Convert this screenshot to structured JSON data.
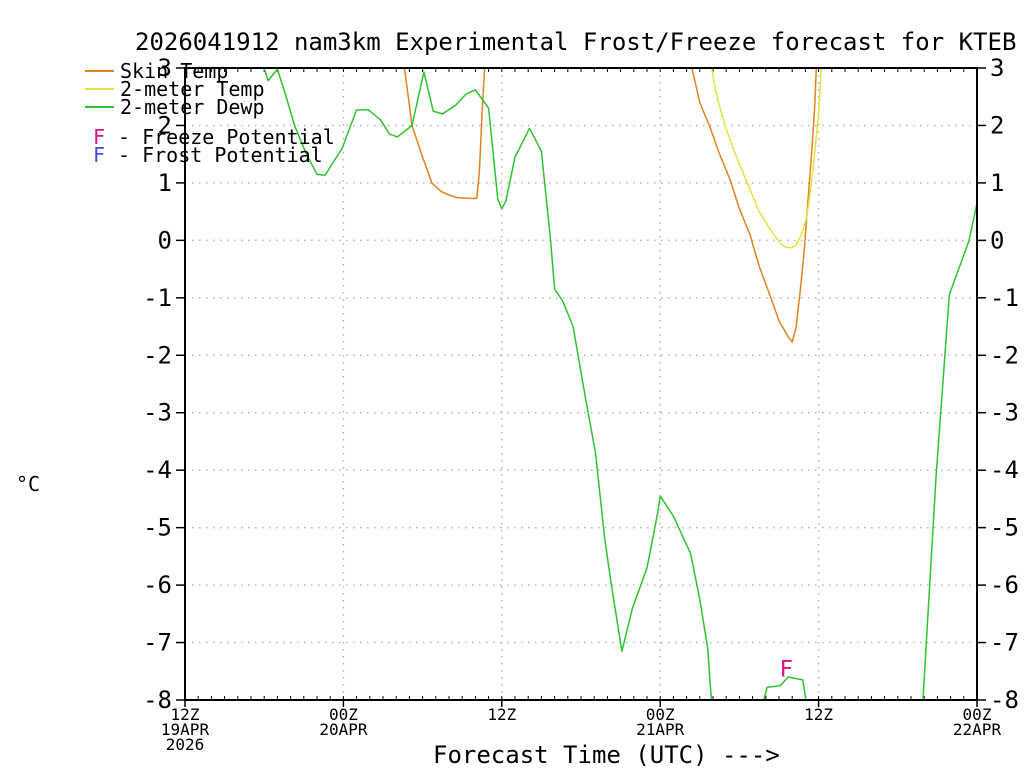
{
  "title": "2026041912 nam3km Experimental Frost/Freeze forecast for KTEB",
  "ylabel": "°C",
  "xlabel": "Forecast Time (UTC) --->",
  "legend": {
    "series": [
      {
        "label": "Skin Temp",
        "color": "#e08421"
      },
      {
        "label": "2-meter Temp",
        "color": "#e2e242"
      },
      {
        "label": "2-meter Dewp",
        "color": "#2ec42e"
      }
    ],
    "flags": [
      {
        "symbol": "F",
        "label": "- Freeze Potential",
        "color": "#d80f8d"
      },
      {
        "symbol": "F",
        "label": "- Frost Potential",
        "color": "#4646ff"
      }
    ]
  },
  "chart_data": {
    "type": "line",
    "title": "2026041912 nam3km Experimental Frost/Freeze forecast for KTEB",
    "x_axis": {
      "label": "Forecast Time (UTC) --->",
      "units": "hours after 12Z 19APR 2026",
      "range_hours": [
        0,
        60
      ],
      "ticks": [
        {
          "hour": 0,
          "lines": [
            "12Z",
            "19APR",
            "2026"
          ]
        },
        {
          "hour": 12,
          "lines": [
            "00Z",
            "20APR"
          ]
        },
        {
          "hour": 24,
          "lines": [
            "12Z"
          ]
        },
        {
          "hour": 36,
          "lines": [
            "00Z",
            "21APR"
          ]
        },
        {
          "hour": 48,
          "lines": [
            "12Z"
          ]
        },
        {
          "hour": 60,
          "lines": [
            "00Z",
            "22APR"
          ]
        }
      ],
      "minor_tick_every_hours": 1
    },
    "y_axis": {
      "label": "°C",
      "range": [
        -8,
        3
      ],
      "ticks": [
        3,
        2,
        1,
        0,
        -1,
        -2,
        -3,
        -4,
        -5,
        -6,
        -7,
        -8
      ]
    },
    "grid": {
      "style": "dotted",
      "color": "#b4b4b4",
      "every_c": 1,
      "every_hours": 12
    },
    "axis_color": "#000000",
    "series": [
      {
        "name": "Skin Temp",
        "color": "#e08421",
        "unit": "°C",
        "note": "values above 3°C are off-scale (clipped at top)",
        "segments": [
          [
            [
              16.4,
              3.4
            ],
            [
              17.2,
              2.0
            ],
            [
              18.0,
              1.45
            ],
            [
              18.7,
              1.0
            ],
            [
              19.4,
              0.85
            ],
            [
              20.1,
              0.78
            ],
            [
              20.7,
              0.74
            ],
            [
              21.4,
              0.73
            ],
            [
              22.1,
              0.73
            ],
            [
              22.3,
              1.2
            ],
            [
              22.5,
              2.2
            ],
            [
              22.8,
              3.4
            ]
          ],
          [
            [
              38.0,
              3.4
            ],
            [
              39.0,
              2.4
            ],
            [
              39.8,
              1.95
            ],
            [
              40.5,
              1.5
            ],
            [
              41.3,
              1.05
            ],
            [
              42.0,
              0.55
            ],
            [
              42.8,
              0.1
            ],
            [
              43.5,
              -0.45
            ],
            [
              44.3,
              -0.95
            ],
            [
              45.0,
              -1.4
            ],
            [
              45.7,
              -1.68
            ],
            [
              46.0,
              -1.77
            ],
            [
              46.3,
              -1.5
            ],
            [
              46.6,
              -0.9
            ],
            [
              46.9,
              -0.2
            ],
            [
              47.2,
              0.7
            ],
            [
              47.5,
              1.6
            ],
            [
              47.7,
              2.3
            ],
            [
              47.9,
              3.4
            ]
          ]
        ]
      },
      {
        "name": "2-meter Temp",
        "color": "#e2e242",
        "unit": "°C",
        "note": "only dips on-scale overnight 21APR; min ≈ -0.1°C near 10Z",
        "segments": [
          [
            [
              39.6,
              3.4
            ],
            [
              40.2,
              2.6
            ],
            [
              40.9,
              2.0
            ],
            [
              41.7,
              1.5
            ],
            [
              42.6,
              1.0
            ],
            [
              43.5,
              0.5
            ],
            [
              44.3,
              0.2
            ],
            [
              45.1,
              -0.05
            ],
            [
              45.5,
              -0.12
            ],
            [
              45.9,
              -0.13
            ],
            [
              46.3,
              -0.08
            ],
            [
              46.7,
              0.1
            ],
            [
              47.1,
              0.4
            ],
            [
              47.4,
              0.9
            ],
            [
              47.7,
              1.5
            ],
            [
              48.0,
              2.2
            ],
            [
              48.3,
              3.4
            ]
          ]
        ]
      },
      {
        "name": "2-meter Dewp",
        "color": "#2ec42e",
        "unit": "°C",
        "note": "drops below -8°C (off-scale) twice; min shown ≈ -7.2°C then below chart",
        "segments": [
          [
            [
              5.4,
              3.4
            ],
            [
              6.3,
              2.78
            ],
            [
              7.0,
              2.98
            ],
            [
              7.6,
              2.55
            ],
            [
              8.3,
              2.0
            ],
            [
              9.2,
              1.5
            ],
            [
              10.0,
              1.15
            ],
            [
              10.6,
              1.13
            ],
            [
              11.9,
              1.6
            ],
            [
              13.0,
              2.27
            ],
            [
              13.9,
              2.27
            ],
            [
              14.8,
              2.1
            ],
            [
              15.5,
              1.85
            ],
            [
              16.1,
              1.8
            ],
            [
              17.2,
              2.0
            ],
            [
              18.1,
              2.93
            ],
            [
              18.8,
              2.25
            ],
            [
              19.5,
              2.2
            ],
            [
              20.5,
              2.35
            ],
            [
              21.3,
              2.55
            ],
            [
              22.0,
              2.62
            ],
            [
              23.0,
              2.3
            ],
            [
              23.7,
              0.72
            ],
            [
              24.0,
              0.55
            ],
            [
              24.3,
              0.68
            ],
            [
              25.0,
              1.45
            ],
            [
              26.1,
              1.95
            ],
            [
              27.0,
              1.55
            ],
            [
              27.7,
              0.0
            ],
            [
              28.0,
              -0.85
            ],
            [
              28.6,
              -1.05
            ],
            [
              29.4,
              -1.5
            ],
            [
              30.3,
              -2.7
            ],
            [
              31.1,
              -3.7
            ],
            [
              31.8,
              -5.2
            ],
            [
              32.3,
              -6.0
            ],
            [
              33.1,
              -7.15
            ],
            [
              33.9,
              -6.4
            ],
            [
              35.0,
              -5.7
            ],
            [
              35.8,
              -4.75
            ],
            [
              36.0,
              -4.45
            ],
            [
              37.0,
              -4.8
            ],
            [
              37.5,
              -5.05
            ],
            [
              38.3,
              -5.45
            ],
            [
              39.0,
              -6.25
            ],
            [
              39.6,
              -7.1
            ],
            [
              40.0,
              -8.4
            ]
          ],
          [
            [
              43.4,
              -8.4
            ],
            [
              44.1,
              -7.78
            ],
            [
              45.1,
              -7.75
            ],
            [
              45.7,
              -7.6
            ],
            [
              46.8,
              -7.65
            ],
            [
              47.3,
              -8.4
            ]
          ],
          [
            [
              55.8,
              -8.4
            ],
            [
              56.9,
              -4.1
            ],
            [
              57.9,
              -0.95
            ],
            [
              59.4,
              0.0
            ],
            [
              60.0,
              0.65
            ]
          ]
        ]
      }
    ],
    "markers": [
      {
        "symbol": "F",
        "meaning": "Freeze Potential",
        "color": "#d80f8d",
        "hour": 45.5,
        "value_c": -7.45
      }
    ]
  }
}
